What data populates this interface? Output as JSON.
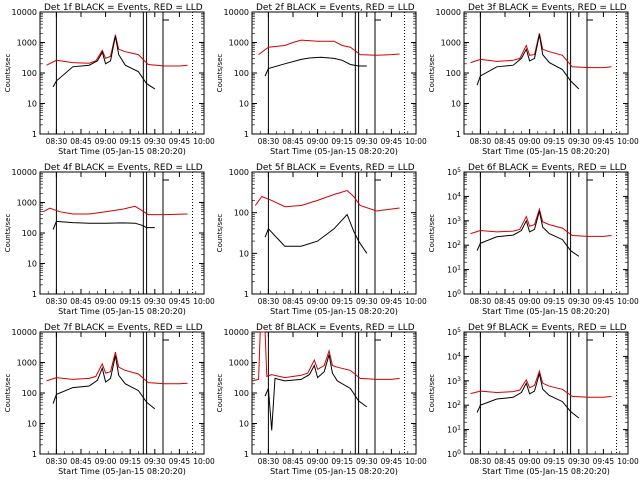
{
  "chart_data": {
    "type": "line",
    "xlabel": "Start Time (05-Jan-15 08:20:20)",
    "ylabel": "Counts/sec",
    "x_ticks": [
      "08:30",
      "08:45",
      "09:00",
      "09:15",
      "09:30",
      "09:45",
      "10:00"
    ],
    "x_range_minutes": [
      0,
      100
    ],
    "legend_note": "BLACK = Events, RED = LLD",
    "series_colors": {
      "Events": "#000000",
      "LLD": "#d40000"
    },
    "panels": [
      {
        "title": "Det 1f BLACK = Events, RED = LLD",
        "y_scale": "log",
        "ylim": [
          1,
          10000
        ],
        "y_ticks": [
          "1",
          "10",
          "100",
          "1000",
          "10000"
        ],
        "markers_min": [
          10,
          63,
          65,
          75
        ],
        "dotted_min": [
          93
        ],
        "lld": [
          [
            4,
            180
          ],
          [
            10,
            260
          ],
          [
            20,
            220
          ],
          [
            30,
            210
          ],
          [
            34,
            250
          ],
          [
            38,
            550
          ],
          [
            40,
            300
          ],
          [
            43,
            350
          ],
          [
            46,
            1800
          ],
          [
            48,
            600
          ],
          [
            52,
            500
          ],
          [
            60,
            400
          ],
          [
            66,
            190
          ],
          [
            76,
            170
          ],
          [
            85,
            170
          ],
          [
            90,
            180
          ]
        ],
        "events": [
          [
            8,
            35
          ],
          [
            10,
            55
          ],
          [
            20,
            160
          ],
          [
            30,
            180
          ],
          [
            35,
            250
          ],
          [
            38,
            480
          ],
          [
            40,
            200
          ],
          [
            43,
            250
          ],
          [
            46,
            1600
          ],
          [
            48,
            400
          ],
          [
            52,
            180
          ],
          [
            60,
            110
          ],
          [
            65,
            45
          ],
          [
            70,
            30
          ]
        ]
      },
      {
        "title": "Det 2f BLACK = Events, RED = LLD",
        "y_scale": "log",
        "ylim": [
          1,
          10000
        ],
        "y_ticks": [
          "1",
          "10",
          "100",
          "1000",
          "10000"
        ],
        "markers_min": [
          10,
          63,
          65,
          75
        ],
        "dotted_min": [
          93
        ],
        "lld": [
          [
            4,
            400
          ],
          [
            10,
            700
          ],
          [
            20,
            800
          ],
          [
            25,
            1000
          ],
          [
            30,
            1200
          ],
          [
            40,
            1100
          ],
          [
            50,
            1100
          ],
          [
            55,
            800
          ],
          [
            60,
            700
          ],
          [
            66,
            400
          ],
          [
            76,
            380
          ],
          [
            85,
            400
          ],
          [
            90,
            420
          ]
        ],
        "events": [
          [
            8,
            80
          ],
          [
            10,
            140
          ],
          [
            20,
            200
          ],
          [
            30,
            280
          ],
          [
            35,
            310
          ],
          [
            42,
            330
          ],
          [
            50,
            300
          ],
          [
            55,
            260
          ],
          [
            60,
            190
          ],
          [
            65,
            170
          ],
          [
            70,
            170
          ]
        ]
      },
      {
        "title": "Det 3f BLACK = Events, RED = LLD",
        "y_scale": "log",
        "ylim": [
          1,
          10000
        ],
        "y_ticks": [
          "1",
          "10",
          "100",
          "1000",
          "10000"
        ],
        "markers_min": [
          10,
          63,
          65,
          75
        ],
        "dotted_min": [
          93
        ],
        "lld": [
          [
            4,
            220
          ],
          [
            10,
            280
          ],
          [
            20,
            240
          ],
          [
            30,
            260
          ],
          [
            34,
            300
          ],
          [
            38,
            800
          ],
          [
            40,
            380
          ],
          [
            43,
            400
          ],
          [
            46,
            2000
          ],
          [
            48,
            600
          ],
          [
            52,
            500
          ],
          [
            60,
            380
          ],
          [
            66,
            160
          ],
          [
            76,
            150
          ],
          [
            85,
            150
          ],
          [
            90,
            160
          ]
        ],
        "events": [
          [
            8,
            40
          ],
          [
            10,
            80
          ],
          [
            20,
            160
          ],
          [
            30,
            180
          ],
          [
            35,
            300
          ],
          [
            38,
            600
          ],
          [
            40,
            250
          ],
          [
            43,
            300
          ],
          [
            46,
            1800
          ],
          [
            48,
            400
          ],
          [
            52,
            220
          ],
          [
            60,
            130
          ],
          [
            65,
            55
          ],
          [
            70,
            30
          ]
        ]
      },
      {
        "title": "Det 4f BLACK = Events, RED = LLD",
        "y_scale": "log",
        "ylim": [
          1,
          10000
        ],
        "y_ticks": [
          "1",
          "10",
          "100",
          "1000",
          "10000"
        ],
        "markers_min": [
          10,
          63,
          65,
          75
        ],
        "dotted_min": [
          93
        ],
        "lld": [
          [
            2,
            500
          ],
          [
            6,
            650
          ],
          [
            12,
            500
          ],
          [
            20,
            420
          ],
          [
            30,
            420
          ],
          [
            40,
            500
          ],
          [
            50,
            600
          ],
          [
            58,
            750
          ],
          [
            62,
            550
          ],
          [
            66,
            400
          ],
          [
            76,
            400
          ],
          [
            90,
            420
          ]
        ],
        "events": [
          [
            8,
            130
          ],
          [
            10,
            240
          ],
          [
            20,
            220
          ],
          [
            30,
            210
          ],
          [
            40,
            210
          ],
          [
            50,
            215
          ],
          [
            58,
            210
          ],
          [
            62,
            180
          ],
          [
            65,
            150
          ],
          [
            70,
            150
          ]
        ]
      },
      {
        "title": "Det 5f BLACK = Events, RED = LLD",
        "y_scale": "log",
        "ylim": [
          1,
          1000
        ],
        "y_ticks": [
          "1",
          "10",
          "100",
          "1000"
        ],
        "markers_min": [
          10,
          63,
          65,
          75
        ],
        "dotted_min": [
          93
        ],
        "lld": [
          [
            2,
            150
          ],
          [
            6,
            250
          ],
          [
            12,
            200
          ],
          [
            20,
            140
          ],
          [
            30,
            150
          ],
          [
            40,
            200
          ],
          [
            50,
            280
          ],
          [
            58,
            350
          ],
          [
            62,
            250
          ],
          [
            66,
            150
          ],
          [
            76,
            110
          ],
          [
            90,
            130
          ]
        ],
        "events": [
          [
            8,
            25
          ],
          [
            10,
            40
          ],
          [
            20,
            15
          ],
          [
            30,
            15
          ],
          [
            40,
            20
          ],
          [
            50,
            40
          ],
          [
            58,
            90
          ],
          [
            62,
            35
          ],
          [
            65,
            20
          ],
          [
            70,
            10
          ]
        ]
      },
      {
        "title": "Det 6f BLACK = Events, RED = LLD",
        "y_scale": "log",
        "ylim": [
          1,
          100000
        ],
        "y_ticks": [
          "10^0",
          "10^1",
          "10^2",
          "10^3",
          "10^4",
          "10^5"
        ],
        "markers_min": [
          10,
          63,
          65,
          75
        ],
        "dotted_min": [
          93
        ],
        "lld": [
          [
            4,
            300
          ],
          [
            10,
            400
          ],
          [
            20,
            350
          ],
          [
            30,
            380
          ],
          [
            34,
            450
          ],
          [
            38,
            1500
          ],
          [
            40,
            600
          ],
          [
            43,
            700
          ],
          [
            46,
            3000
          ],
          [
            48,
            900
          ],
          [
            52,
            700
          ],
          [
            60,
            500
          ],
          [
            66,
            250
          ],
          [
            76,
            230
          ],
          [
            85,
            230
          ],
          [
            90,
            250
          ]
        ],
        "events": [
          [
            8,
            60
          ],
          [
            10,
            120
          ],
          [
            20,
            220
          ],
          [
            30,
            260
          ],
          [
            35,
            400
          ],
          [
            38,
            1000
          ],
          [
            40,
            350
          ],
          [
            43,
            450
          ],
          [
            46,
            2500
          ],
          [
            48,
            550
          ],
          [
            52,
            300
          ],
          [
            60,
            170
          ],
          [
            65,
            60
          ],
          [
            70,
            35
          ]
        ]
      },
      {
        "title": "Det 7f BLACK = Events, RED = LLD",
        "y_scale": "log",
        "ylim": [
          1,
          10000
        ],
        "y_ticks": [
          "1",
          "10",
          "100",
          "1000",
          "10000"
        ],
        "markers_min": [
          10,
          63,
          65,
          75
        ],
        "dotted_min": [
          93
        ],
        "lld": [
          [
            4,
            250
          ],
          [
            10,
            320
          ],
          [
            20,
            280
          ],
          [
            30,
            300
          ],
          [
            34,
            350
          ],
          [
            38,
            900
          ],
          [
            40,
            450
          ],
          [
            43,
            500
          ],
          [
            46,
            2200
          ],
          [
            48,
            700
          ],
          [
            52,
            550
          ],
          [
            60,
            420
          ],
          [
            66,
            220
          ],
          [
            76,
            200
          ],
          [
            85,
            200
          ],
          [
            90,
            210
          ]
        ],
        "events": [
          [
            8,
            45
          ],
          [
            10,
            90
          ],
          [
            20,
            150
          ],
          [
            30,
            170
          ],
          [
            35,
            260
          ],
          [
            38,
            650
          ],
          [
            40,
            230
          ],
          [
            43,
            300
          ],
          [
            46,
            1700
          ],
          [
            48,
            380
          ],
          [
            52,
            200
          ],
          [
            60,
            120
          ],
          [
            65,
            50
          ],
          [
            70,
            30
          ]
        ]
      },
      {
        "title": "Det 8f BLACK = Events, RED = LLD",
        "y_scale": "log",
        "ylim": [
          1,
          10000
        ],
        "y_ticks": [
          "1",
          "10",
          "100",
          "1000",
          "10000"
        ],
        "markers_min": [
          10,
          63,
          65,
          75
        ],
        "dotted_min": [
          93
        ],
        "lld": [
          [
            0,
            250
          ],
          [
            4,
            280
          ],
          [
            5,
            10000
          ],
          [
            8,
            10000
          ],
          [
            9,
            350
          ],
          [
            12,
            400
          ],
          [
            20,
            320
          ],
          [
            30,
            380
          ],
          [
            34,
            450
          ],
          [
            38,
            1200
          ],
          [
            40,
            600
          ],
          [
            44,
            800
          ],
          [
            47,
            2400
          ],
          [
            49,
            800
          ],
          [
            52,
            700
          ],
          [
            60,
            550
          ],
          [
            66,
            300
          ],
          [
            76,
            280
          ],
          [
            85,
            280
          ],
          [
            90,
            300
          ]
        ],
        "events": [
          [
            8,
            80
          ],
          [
            10,
            140
          ],
          [
            12,
            6
          ],
          [
            14,
            300
          ],
          [
            20,
            250
          ],
          [
            30,
            280
          ],
          [
            35,
            400
          ],
          [
            38,
            800
          ],
          [
            40,
            320
          ],
          [
            44,
            500
          ],
          [
            47,
            1800
          ],
          [
            49,
            450
          ],
          [
            52,
            250
          ],
          [
            60,
            140
          ],
          [
            65,
            55
          ],
          [
            70,
            35
          ]
        ]
      },
      {
        "title": "Det 9f BLACK = Events, RED = LLD",
        "y_scale": "log",
        "ylim": [
          1,
          100000
        ],
        "y_ticks": [
          "10^0",
          "10^1",
          "10^2",
          "10^3",
          "10^4",
          "10^5"
        ],
        "markers_min": [
          10,
          63,
          65,
          75
        ],
        "dotted_min": [
          93
        ],
        "lld": [
          [
            4,
            300
          ],
          [
            10,
            380
          ],
          [
            20,
            330
          ],
          [
            30,
            360
          ],
          [
            34,
            420
          ],
          [
            38,
            1100
          ],
          [
            40,
            520
          ],
          [
            43,
            650
          ],
          [
            46,
            2500
          ],
          [
            48,
            800
          ],
          [
            52,
            600
          ],
          [
            60,
            450
          ],
          [
            66,
            230
          ],
          [
            76,
            210
          ],
          [
            85,
            210
          ],
          [
            90,
            230
          ]
        ],
        "events": [
          [
            8,
            50
          ],
          [
            10,
            100
          ],
          [
            20,
            180
          ],
          [
            30,
            210
          ],
          [
            35,
            330
          ],
          [
            38,
            800
          ],
          [
            40,
            290
          ],
          [
            43,
            380
          ],
          [
            46,
            2000
          ],
          [
            48,
            450
          ],
          [
            52,
            250
          ],
          [
            60,
            140
          ],
          [
            65,
            55
          ],
          [
            70,
            30
          ]
        ]
      }
    ]
  }
}
